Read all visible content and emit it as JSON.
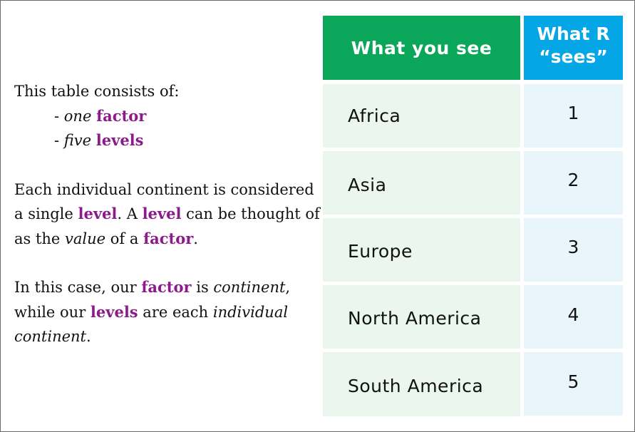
{
  "explanation": {
    "intro": "This table consists of:",
    "bullet1_prefix": "- ",
    "bullet1_italic": "one",
    "bullet1_kw": "factor",
    "bullet2_prefix": "- ",
    "bullet2_italic": "five",
    "bullet2_kw": "levels",
    "p2_t1": "Each individual continent is considered a single ",
    "p2_kw1": "level",
    "p2_t2": ". A ",
    "p2_kw2": "level",
    "p2_t3": " can be thought of as the ",
    "p2_italic": "value",
    "p2_t4": " of a ",
    "p2_kw3": "factor",
    "p2_t5": ".",
    "p3_t1": "In this case, our ",
    "p3_kw1": "factor",
    "p3_t2": " is ",
    "p3_italic1": "continent",
    "p3_t3": ", while our ",
    "p3_kw2": "levels",
    "p3_t4": " are each ",
    "p3_italic2": "individual continent",
    "p3_t5": "."
  },
  "table": {
    "header_see": "What you see",
    "header_r_line1": "What R",
    "header_r_line2": "“sees”",
    "rows": [
      {
        "label": "Africa",
        "code": "1"
      },
      {
        "label": "Asia",
        "code": "2"
      },
      {
        "label": "Europe",
        "code": "3"
      },
      {
        "label": "North America",
        "code": "4"
      },
      {
        "label": "South America",
        "code": "5"
      }
    ]
  },
  "colors": {
    "header_see_bg": "#0aa65a",
    "header_r_bg": "#05a6e6",
    "keyword": "#8b1a8b",
    "cell_see_bg": "#ebf6ef",
    "cell_r_bg": "#e8f6fc"
  }
}
